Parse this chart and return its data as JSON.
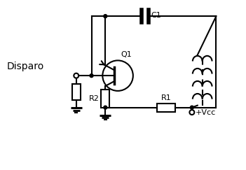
{
  "background_color": "#ffffff",
  "text_color": "#000000",
  "label_disparo": "Disparo",
  "label_q1": "Q1",
  "label_r1": "R1",
  "label_r2": "R2",
  "label_c1": "C1",
  "label_vcc": "+Vcc",
  "figsize": [
    3.51,
    2.43
  ],
  "dpi": 100
}
